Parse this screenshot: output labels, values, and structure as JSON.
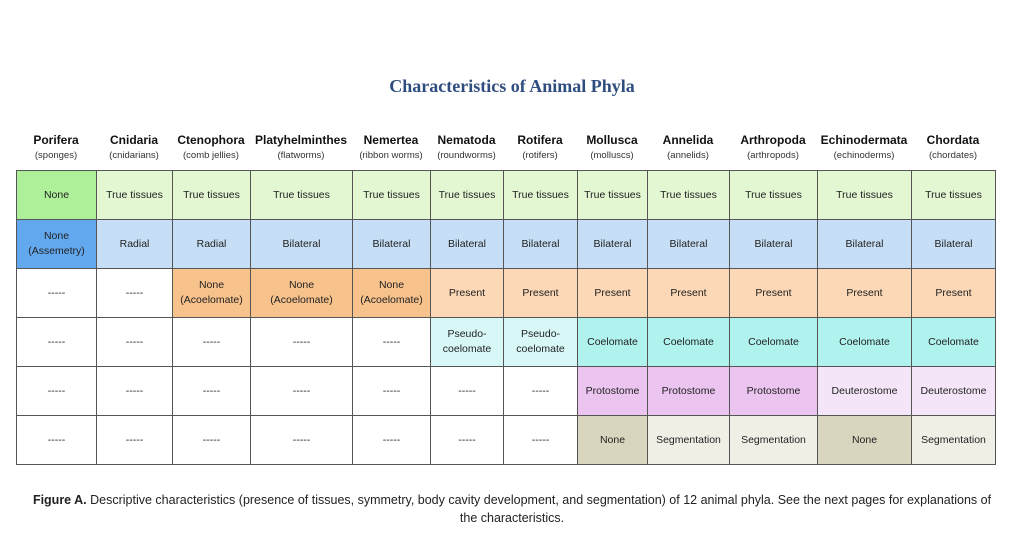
{
  "title": "Characteristics of Animal Phyla",
  "phyla": [
    {
      "name": "Porifera",
      "common": "(sponges)"
    },
    {
      "name": "Cnidaria",
      "common": "(cnidarians)"
    },
    {
      "name": "Ctenophora",
      "common": "(comb jellies)"
    },
    {
      "name": "Platyhelminthes",
      "common": "(flatworms)"
    },
    {
      "name": "Nemertea",
      "common": "(ribbon worms)"
    },
    {
      "name": "Nematoda",
      "common": "(roundworms)"
    },
    {
      "name": "Rotifera",
      "common": "(rotifers)"
    },
    {
      "name": "Mollusca",
      "common": "(molluscs)"
    },
    {
      "name": "Annelida",
      "common": "(annelids)"
    },
    {
      "name": "Arthropoda",
      "common": "(arthropods)"
    },
    {
      "name": "Echinodermata",
      "common": "(echinoderms)"
    },
    {
      "name": "Chordata",
      "common": "(chordates)"
    }
  ],
  "colors": {
    "tissues_none": "#aef09a",
    "tissues_true": "#e3f7d3",
    "symmetry_none": "#62a8ee",
    "symmetry": "#c6dff6",
    "acoelomate": "#f8c28c",
    "present": "#fcd8b6",
    "pseudocoelomate": "#d8f8f8",
    "coelomate": "#aff2ee",
    "protostome": "#ebc5f0",
    "deuterostome": "#f4e6f8",
    "seg_none": "#d9d6bf",
    "seg": "#f0efe6",
    "blank": "#ffffff"
  },
  "rows": [
    [
      {
        "text": "None",
        "color": "tissues_none"
      },
      {
        "text": "True tissues",
        "color": "tissues_true"
      },
      {
        "text": "True tissues",
        "color": "tissues_true"
      },
      {
        "text": "True tissues",
        "color": "tissues_true"
      },
      {
        "text": "True tissues",
        "color": "tissues_true"
      },
      {
        "text": "True tissues",
        "color": "tissues_true"
      },
      {
        "text": "True tissues",
        "color": "tissues_true"
      },
      {
        "text": "True tissues",
        "color": "tissues_true"
      },
      {
        "text": "True tissues",
        "color": "tissues_true"
      },
      {
        "text": "True tissues",
        "color": "tissues_true"
      },
      {
        "text": "True tissues",
        "color": "tissues_true"
      },
      {
        "text": "True tissues",
        "color": "tissues_true"
      }
    ],
    [
      {
        "text": "None\n(Assemetry)",
        "color": "symmetry_none"
      },
      {
        "text": "Radial",
        "color": "symmetry"
      },
      {
        "text": "Radial",
        "color": "symmetry"
      },
      {
        "text": "Bilateral",
        "color": "symmetry"
      },
      {
        "text": "Bilateral",
        "color": "symmetry"
      },
      {
        "text": "Bilateral",
        "color": "symmetry"
      },
      {
        "text": "Bilateral",
        "color": "symmetry"
      },
      {
        "text": "Bilateral",
        "color": "symmetry"
      },
      {
        "text": "Bilateral",
        "color": "symmetry"
      },
      {
        "text": "Bilateral",
        "color": "symmetry"
      },
      {
        "text": "Bilateral",
        "color": "symmetry"
      },
      {
        "text": "Bilateral",
        "color": "symmetry"
      }
    ],
    [
      {
        "text": "-----",
        "color": "blank"
      },
      {
        "text": "-----",
        "color": "blank"
      },
      {
        "text": "None\n(Acoelomate)",
        "color": "acoelomate"
      },
      {
        "text": "None\n(Acoelomate)",
        "color": "acoelomate"
      },
      {
        "text": "None\n(Acoelomate)",
        "color": "acoelomate"
      },
      {
        "text": "Present",
        "color": "present"
      },
      {
        "text": "Present",
        "color": "present"
      },
      {
        "text": "Present",
        "color": "present"
      },
      {
        "text": "Present",
        "color": "present"
      },
      {
        "text": "Present",
        "color": "present"
      },
      {
        "text": "Present",
        "color": "present"
      },
      {
        "text": "Present",
        "color": "present"
      }
    ],
    [
      {
        "text": "-----",
        "color": "blank"
      },
      {
        "text": "-----",
        "color": "blank"
      },
      {
        "text": "-----",
        "color": "blank"
      },
      {
        "text": "-----",
        "color": "blank"
      },
      {
        "text": "-----",
        "color": "blank"
      },
      {
        "text": "Pseudo-\ncoelomate",
        "color": "pseudocoelomate"
      },
      {
        "text": "Pseudo-\ncoelomate",
        "color": "pseudocoelomate"
      },
      {
        "text": "Coelomate",
        "color": "coelomate"
      },
      {
        "text": "Coelomate",
        "color": "coelomate"
      },
      {
        "text": "Coelomate",
        "color": "coelomate"
      },
      {
        "text": "Coelomate",
        "color": "coelomate"
      },
      {
        "text": "Coelomate",
        "color": "coelomate"
      }
    ],
    [
      {
        "text": "-----",
        "color": "blank"
      },
      {
        "text": "-----",
        "color": "blank"
      },
      {
        "text": "-----",
        "color": "blank"
      },
      {
        "text": "-----",
        "color": "blank"
      },
      {
        "text": "-----",
        "color": "blank"
      },
      {
        "text": "-----",
        "color": "blank"
      },
      {
        "text": "-----",
        "color": "blank"
      },
      {
        "text": "Protostome",
        "color": "protostome"
      },
      {
        "text": "Protostome",
        "color": "protostome"
      },
      {
        "text": "Protostome",
        "color": "protostome"
      },
      {
        "text": "Deuterostome",
        "color": "deuterostome"
      },
      {
        "text": "Deuterostome",
        "color": "deuterostome"
      }
    ],
    [
      {
        "text": "-----",
        "color": "blank"
      },
      {
        "text": "-----",
        "color": "blank"
      },
      {
        "text": "-----",
        "color": "blank"
      },
      {
        "text": "-----",
        "color": "blank"
      },
      {
        "text": "-----",
        "color": "blank"
      },
      {
        "text": "-----",
        "color": "blank"
      },
      {
        "text": "-----",
        "color": "blank"
      },
      {
        "text": "None",
        "color": "seg_none"
      },
      {
        "text": "Segmentation",
        "color": "seg"
      },
      {
        "text": "Segmentation",
        "color": "seg"
      },
      {
        "text": "None",
        "color": "seg_none"
      },
      {
        "text": "Segmentation",
        "color": "seg"
      }
    ]
  ],
  "caption": {
    "label": "Figure A.",
    "text": " Descriptive characteristics (presence of tissues, symmetry, body cavity development, and segmentation) of 12 animal phyla. See the next pages for explanations of the characteristics."
  }
}
